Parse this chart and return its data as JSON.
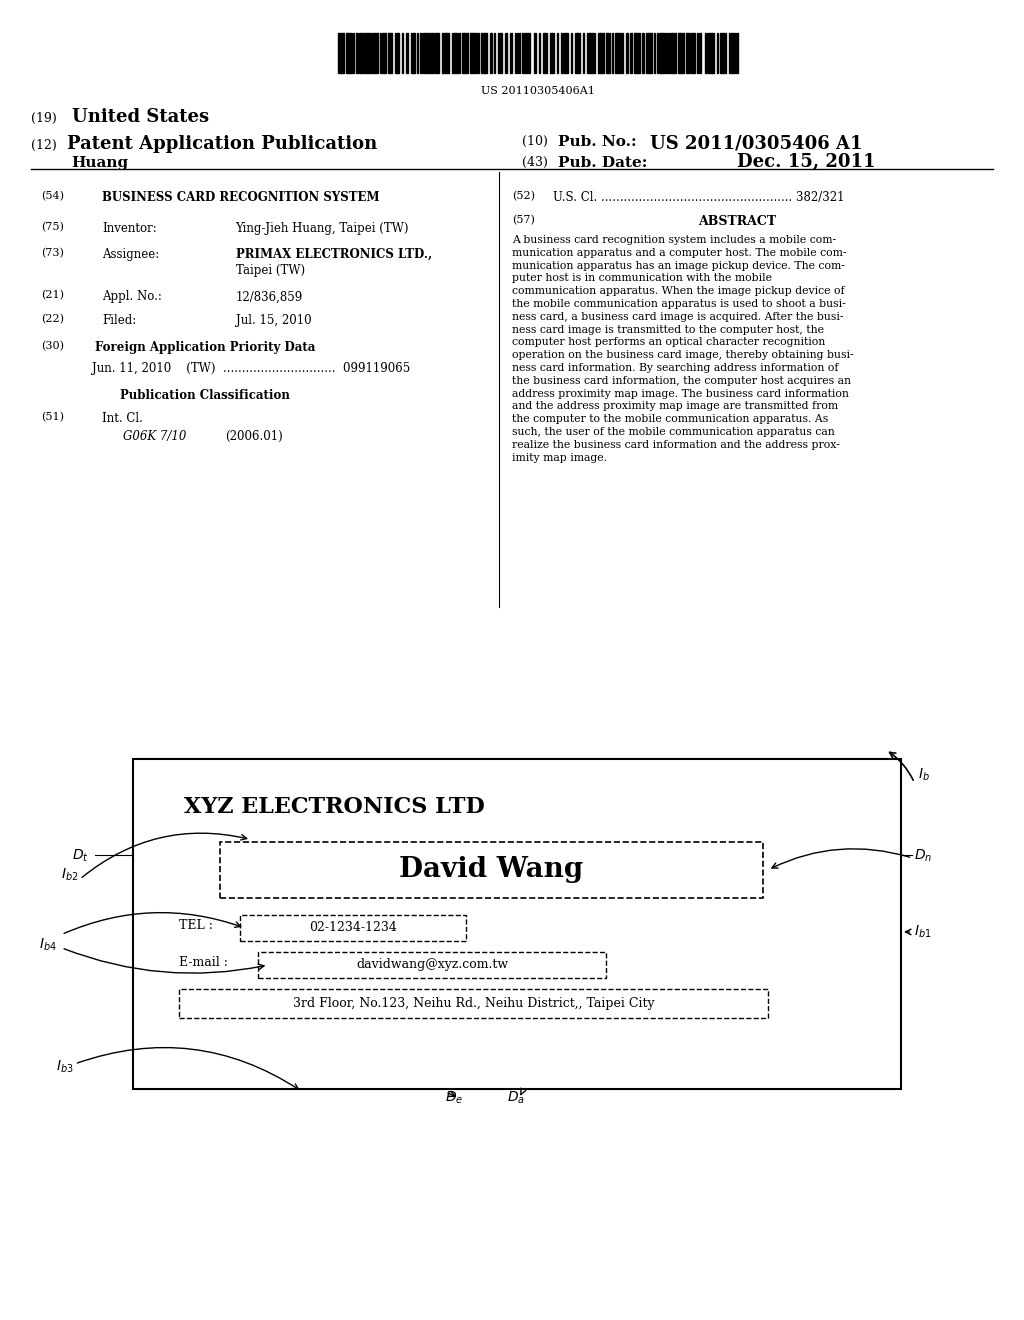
{
  "bg_color": "#ffffff",
  "barcode_text": "US 20110305406A1",
  "header": {
    "line1_num": "(19)",
    "line1_text": "United States",
    "line2_num": "(12)",
    "line2_text": "Patent Application Publication",
    "line3_author": "Huang",
    "right_line1_num": "(10)",
    "right_line1_label": "Pub. No.:",
    "right_line1_value": "US 2011/0305406 A1",
    "right_line2_num": "(43)",
    "right_line2_label": "Pub. Date:",
    "right_line2_value": "Dec. 15, 2011"
  },
  "abstract_text": "A business card recognition system includes a mobile com-\nmunication apparatus and a computer host. The mobile com-\nmunication apparatus has an image pickup device. The com-\nputer host is in communication with the mobile\ncommunication apparatus. When the image pickup device of\nthe mobile communication apparatus is used to shoot a busi-\nness card, a business card image is acquired. After the busi-\nness card image is transmitted to the computer host, the\ncomputer host performs an optical character recognition\noperation on the business card image, thereby obtaining busi-\nness card information. By searching address information of\nthe business card information, the computer host acquires an\naddress proximity map image. The business card information\nand the address proximity map image are transmitted from\nthe computer to the mobile communication apparatus. As\nsuch, the user of the mobile communication apparatus can\nrealize the business card information and the address prox-\nimity map image."
}
